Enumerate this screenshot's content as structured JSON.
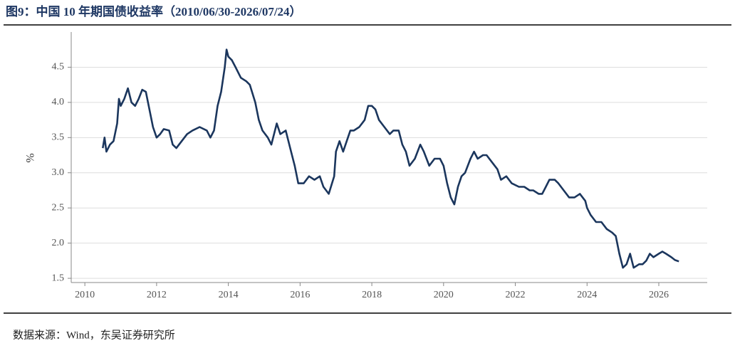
{
  "chart_data": {
    "type": "line",
    "title": "图9：中国 10 年期国债收益率（2010/06/30-2026/07/24）",
    "ylabel": "%",
    "source": "数据来源：Wind，东吴证券研究所",
    "xlim": [
      2009.62,
      2027.35
    ],
    "xticks": [
      2010,
      2012,
      2014,
      2016,
      2018,
      2020,
      2022,
      2024,
      2026
    ],
    "ylim": [
      1.44,
      5.0
    ],
    "yticks": [
      1.5,
      {
        "value": 2,
        "label": "2.0"
      },
      2.5,
      {
        "value": 3,
        "label": "3.0"
      },
      3.5,
      {
        "value": 4,
        "label": "4.0"
      },
      4.5
    ],
    "grid": true,
    "series": [
      {
        "name": null,
        "color": "#1b365d",
        "x": [
          2010.5,
          2010.55,
          2010.6,
          2010.7,
          2010.8,
          2010.9,
          2010.95,
          2011.0,
          2011.1,
          2011.2,
          2011.3,
          2011.4,
          2011.5,
          2011.6,
          2011.7,
          2011.8,
          2011.9,
          2012.0,
          2012.1,
          2012.2,
          2012.35,
          2012.45,
          2012.55,
          2012.7,
          2012.85,
          2013.0,
          2013.2,
          2013.4,
          2013.5,
          2013.6,
          2013.7,
          2013.8,
          2013.9,
          2013.95,
          2014.0,
          2014.1,
          2014.2,
          2014.35,
          2014.5,
          2014.6,
          2014.75,
          2014.85,
          2014.95,
          2015.1,
          2015.2,
          2015.35,
          2015.45,
          2015.6,
          2015.75,
          2015.85,
          2015.95,
          2016.1,
          2016.25,
          2016.4,
          2016.55,
          2016.65,
          2016.8,
          2016.95,
          2017.0,
          2017.1,
          2017.2,
          2017.3,
          2017.4,
          2017.5,
          2017.65,
          2017.8,
          2017.9,
          2018.0,
          2018.1,
          2018.2,
          2018.35,
          2018.5,
          2018.6,
          2018.75,
          2018.85,
          2018.95,
          2019.05,
          2019.2,
          2019.35,
          2019.45,
          2019.6,
          2019.75,
          2019.9,
          2020.0,
          2020.1,
          2020.2,
          2020.3,
          2020.4,
          2020.5,
          2020.6,
          2020.75,
          2020.85,
          2020.95,
          2021.1,
          2021.2,
          2021.35,
          2021.5,
          2021.6,
          2021.75,
          2021.9,
          2022.1,
          2022.25,
          2022.4,
          2022.5,
          2022.65,
          2022.75,
          2022.85,
          2022.95,
          2023.1,
          2023.2,
          2023.35,
          2023.5,
          2023.65,
          2023.8,
          2023.95,
          2024.0,
          2024.1,
          2024.25,
          2024.4,
          2024.55,
          2024.7,
          2024.8,
          2024.9,
          2025.0,
          2025.1,
          2025.2,
          2025.3,
          2025.45,
          2025.55,
          2025.65,
          2025.75,
          2025.85,
          2026.0,
          2026.1,
          2026.2,
          2026.35,
          2026.45,
          2026.56
        ],
        "values": [
          3.35,
          3.5,
          3.3,
          3.4,
          3.45,
          3.7,
          4.05,
          3.95,
          4.05,
          4.2,
          4.0,
          3.95,
          4.05,
          4.18,
          4.15,
          3.9,
          3.65,
          3.5,
          3.55,
          3.62,
          3.6,
          3.4,
          3.35,
          3.45,
          3.55,
          3.6,
          3.65,
          3.6,
          3.5,
          3.6,
          3.95,
          4.15,
          4.5,
          4.75,
          4.65,
          4.6,
          4.5,
          4.35,
          4.3,
          4.25,
          4.0,
          3.75,
          3.6,
          3.5,
          3.4,
          3.7,
          3.55,
          3.6,
          3.3,
          3.1,
          2.85,
          2.85,
          2.95,
          2.9,
          2.95,
          2.8,
          2.7,
          2.95,
          3.3,
          3.45,
          3.3,
          3.45,
          3.6,
          3.6,
          3.65,
          3.75,
          3.95,
          3.95,
          3.9,
          3.75,
          3.65,
          3.55,
          3.6,
          3.6,
          3.4,
          3.3,
          3.1,
          3.2,
          3.4,
          3.3,
          3.1,
          3.2,
          3.2,
          3.1,
          2.85,
          2.65,
          2.55,
          2.8,
          2.95,
          3.0,
          3.2,
          3.3,
          3.2,
          3.25,
          3.25,
          3.15,
          3.05,
          2.9,
          2.95,
          2.85,
          2.8,
          2.8,
          2.75,
          2.75,
          2.7,
          2.7,
          2.8,
          2.9,
          2.9,
          2.85,
          2.75,
          2.65,
          2.65,
          2.7,
          2.6,
          2.5,
          2.4,
          2.3,
          2.3,
          2.2,
          2.15,
          2.1,
          1.85,
          1.65,
          1.7,
          1.85,
          1.65,
          1.7,
          1.7,
          1.75,
          1.85,
          1.8,
          1.85,
          1.88,
          1.85,
          1.8,
          1.76,
          1.74
        ]
      }
    ]
  }
}
